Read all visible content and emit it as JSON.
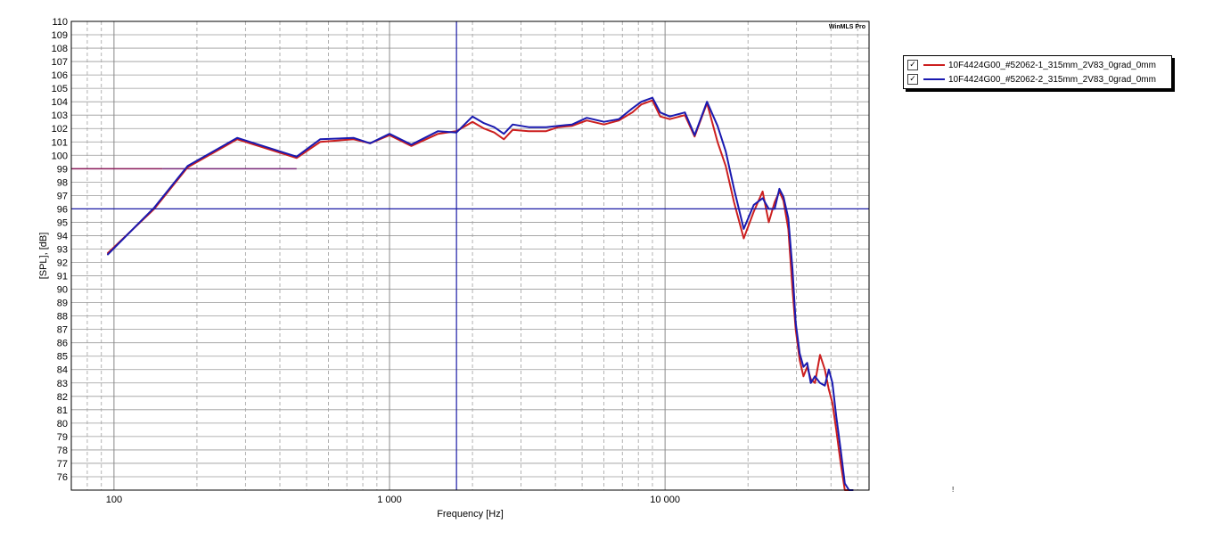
{
  "chart_data": {
    "type": "line",
    "title": "",
    "xlabel": "Frequency [Hz]",
    "ylabel": "[SPL], [dB]",
    "brand": "WinMLS Pro",
    "xscale": "log",
    "xlim": [
      70,
      55000
    ],
    "ylim": [
      75,
      110
    ],
    "y_ticks": [
      76,
      77,
      78,
      79,
      80,
      81,
      82,
      83,
      84,
      85,
      86,
      87,
      88,
      89,
      90,
      91,
      92,
      93,
      94,
      95,
      96,
      97,
      98,
      99,
      100,
      101,
      102,
      103,
      104,
      105,
      106,
      107,
      108,
      109,
      110
    ],
    "x_ticks": [
      {
        "value": 100,
        "label": "100"
      },
      {
        "value": 1000,
        "label": "1 000"
      },
      {
        "value": 10000,
        "label": "10 000"
      }
    ],
    "grid": true,
    "legend_position": "top-right-outside",
    "cursor": {
      "x": 1750,
      "y": 96,
      "color": "#1a1aa6"
    },
    "reference_lines": [
      {
        "x": [
          70,
          150
        ],
        "y": 99,
        "color": "#8b1a5a"
      },
      {
        "x": [
          150,
          460
        ],
        "y": 99,
        "color": "#7a2a7a"
      }
    ],
    "series": [
      {
        "name": "10F4424G00_#52062-1_315mm_2V83_0grad_0mm",
        "color": "#cc1f1f",
        "checked": "✓",
        "x": [
          95,
          140,
          185,
          280,
          460,
          560,
          740,
          850,
          1000,
          1200,
          1500,
          1750,
          2000,
          2200,
          2400,
          2600,
          2800,
          3200,
          3700,
          4100,
          4600,
          5200,
          6000,
          6800,
          7600,
          8200,
          9000,
          9600,
          10400,
          11800,
          12800,
          14200,
          15500,
          16600,
          17800,
          19300,
          21000,
          22600,
          23800,
          25000,
          26000,
          26900,
          28000,
          29000,
          29800,
          30800,
          31800,
          32800,
          33800,
          35000,
          36500,
          38000,
          39300,
          40500,
          41800,
          43400,
          44900,
          46500,
          48000
        ],
        "y": [
          92.7,
          96.0,
          99.1,
          101.2,
          99.8,
          101.0,
          101.2,
          100.9,
          101.5,
          100.7,
          101.6,
          101.8,
          102.5,
          102.0,
          101.7,
          101.2,
          101.9,
          101.8,
          101.8,
          102.1,
          102.2,
          102.6,
          102.3,
          102.6,
          103.2,
          103.8,
          104.1,
          102.9,
          102.7,
          103.0,
          101.4,
          103.9,
          101.0,
          99.2,
          96.5,
          93.8,
          95.8,
          97.3,
          95.0,
          96.5,
          97.3,
          96.6,
          94.5,
          90.0,
          87.0,
          84.7,
          83.5,
          84.2,
          83.3,
          83.0,
          85.1,
          84.0,
          82.5,
          81.5,
          79.5,
          77.0,
          75.0,
          75.0,
          75.0
        ]
      },
      {
        "name": "10F4424G00_#52062-2_315mm_2V83_0grad_0mm",
        "color": "#1a1ab0",
        "checked": "✓",
        "x": [
          95,
          140,
          185,
          280,
          460,
          560,
          740,
          850,
          1000,
          1200,
          1500,
          1750,
          2000,
          2200,
          2400,
          2600,
          2800,
          3200,
          3700,
          4100,
          4600,
          5200,
          6000,
          6800,
          7600,
          8200,
          9000,
          9600,
          10400,
          11800,
          12800,
          14200,
          15500,
          16600,
          17800,
          19300,
          21000,
          22600,
          23800,
          25000,
          26000,
          26900,
          28000,
          29000,
          29800,
          30800,
          31800,
          32800,
          33800,
          35000,
          36500,
          38000,
          39300,
          40500,
          41800,
          43400,
          44900,
          46500,
          48000
        ],
        "y": [
          92.6,
          96.1,
          99.2,
          101.3,
          99.9,
          101.2,
          101.3,
          100.9,
          101.6,
          100.8,
          101.8,
          101.7,
          102.9,
          102.4,
          102.1,
          101.6,
          102.3,
          102.1,
          102.1,
          102.2,
          102.3,
          102.8,
          102.5,
          102.7,
          103.5,
          104.0,
          104.3,
          103.2,
          102.9,
          103.2,
          101.5,
          104.0,
          102.2,
          100.3,
          97.5,
          94.5,
          96.3,
          96.8,
          96.0,
          96.0,
          97.5,
          96.9,
          95.3,
          91.5,
          87.5,
          85.2,
          84.2,
          84.5,
          83.0,
          83.5,
          83.0,
          82.8,
          84.0,
          83.0,
          80.5,
          78.0,
          75.5,
          75.0,
          75.0
        ]
      }
    ]
  }
}
